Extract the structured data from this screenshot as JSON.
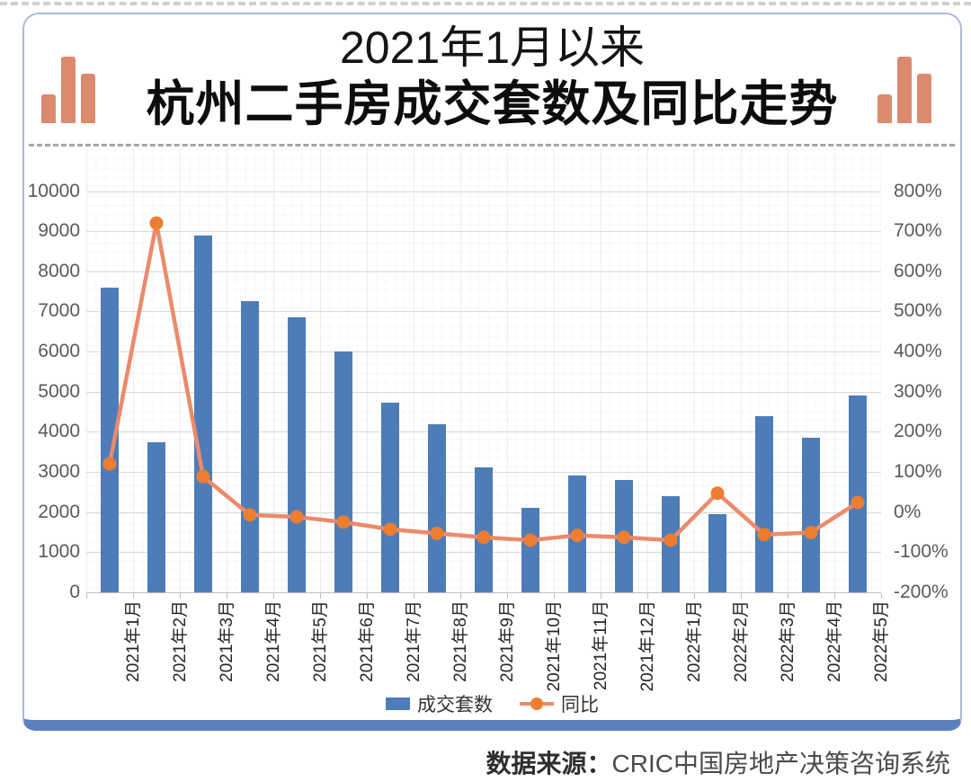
{
  "page": {
    "title_line1": "2021年1月以来",
    "title_line2": "杭州二手房成交套数及同比走势",
    "source_label": "数据来源：",
    "source_text": "CRIC中国房地产决策咨询系统"
  },
  "legend": {
    "bars_label": "成交套数",
    "line_label": "同比"
  },
  "colors": {
    "bar": "#4e7cb9",
    "line": "#eb8a6c",
    "marker": "#ed7d31",
    "deco_bar": "#dc8a6e",
    "divider_blue": "#5b80be",
    "card_border": "#adbbd2",
    "gridline": "#d9d9d9",
    "axis_text": "#595959"
  },
  "chart_data": {
    "type": "bar+line combo",
    "title": "2021年1月以来杭州二手房成交套数及同比走势",
    "categories": [
      "2021年1月",
      "2021年2月",
      "2021年3月",
      "2021年4月",
      "2021年5月",
      "2021年6月",
      "2021年7月",
      "2021年8月",
      "2021年9月",
      "2021年10月",
      "2021年11月",
      "2021年12月",
      "2022年1月",
      "2022年2月",
      "2022年3月",
      "2022年4月",
      "2022年5月"
    ],
    "series": [
      {
        "name": "成交套数",
        "type": "bar",
        "axis": "left",
        "values": [
          7600,
          3750,
          8900,
          7250,
          6850,
          6000,
          4720,
          4180,
          3120,
          2100,
          2920,
          2790,
          2400,
          1950,
          4380,
          3860,
          4900
        ]
      },
      {
        "name": "同比",
        "type": "line",
        "axis": "right",
        "unit": "%",
        "values": [
          120,
          720,
          88,
          -7,
          -12,
          -25,
          -43,
          -53,
          -63,
          -70,
          -58,
          -63,
          -70,
          47,
          -56,
          -51,
          24
        ]
      }
    ],
    "left_axis": {
      "min": 0,
      "max": 10000,
      "step": 1000,
      "ticks": [
        "10000",
        "9000",
        "8000",
        "7000",
        "6000",
        "5000",
        "4000",
        "3000",
        "2000",
        "1000",
        "0"
      ]
    },
    "right_axis": {
      "min": -200,
      "max": 800,
      "step": 100,
      "ticks": [
        "800%",
        "700%",
        "600%",
        "500%",
        "400%",
        "300%",
        "200%",
        "100%",
        "0%",
        "-100%",
        "-200%"
      ]
    },
    "grid": "horizontal major, faint minor",
    "legend_position": "bottom center"
  }
}
